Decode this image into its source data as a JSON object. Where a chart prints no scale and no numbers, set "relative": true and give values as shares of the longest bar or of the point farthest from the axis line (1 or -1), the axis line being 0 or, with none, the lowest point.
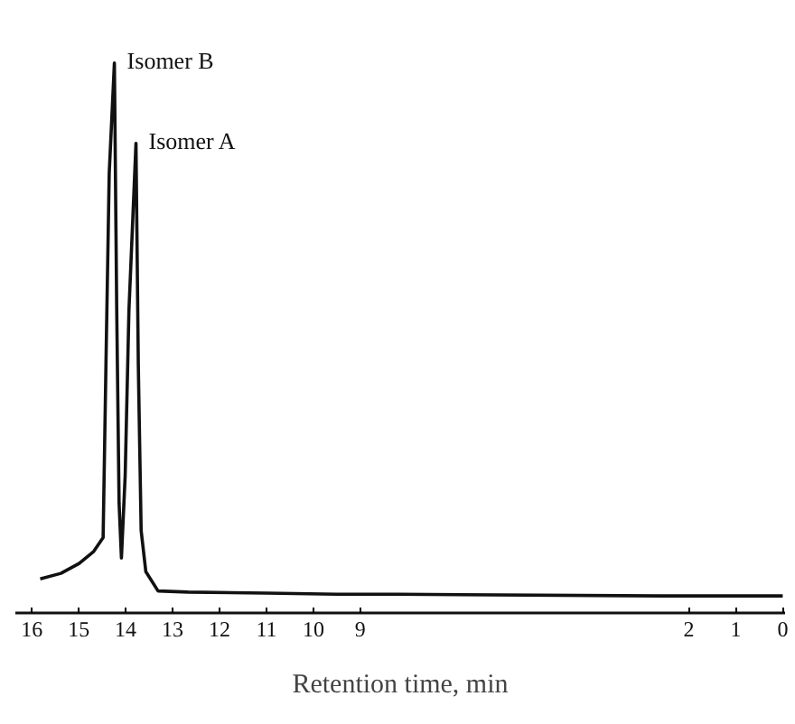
{
  "chart_data": {
    "type": "line",
    "relative": true,
    "xlabel": "Retention time, min",
    "xlim": [
      16.35,
      -0.05
    ],
    "xticks": [
      16,
      15,
      14,
      13,
      12,
      11,
      10,
      9,
      2,
      1,
      0
    ],
    "color": "#111111",
    "x": [
      15.82,
      15.38,
      14.99,
      14.68,
      14.48,
      14.42,
      14.35,
      14.24,
      14.19,
      14.14,
      14.09,
      14.01,
      13.93,
      13.78,
      13.73,
      13.67,
      13.57,
      13.31,
      12.67,
      11.0,
      9.5,
      8.2,
      2.6,
      0
    ],
    "values": [
      0.062,
      0.072,
      0.09,
      0.112,
      0.137,
      0.45,
      0.8,
      1.0,
      0.55,
      0.2,
      0.1,
      0.25,
      0.55,
      0.854,
      0.45,
      0.15,
      0.075,
      0.04,
      0.038,
      0.036,
      0.034,
      0.034,
      0.031,
      0.031
    ],
    "annotations": [
      {
        "text": "Isomer B",
        "x": 14.24,
        "y": 1.0
      },
      {
        "text": "Isomer A",
        "x": 13.78,
        "y": 0.854
      }
    ]
  }
}
